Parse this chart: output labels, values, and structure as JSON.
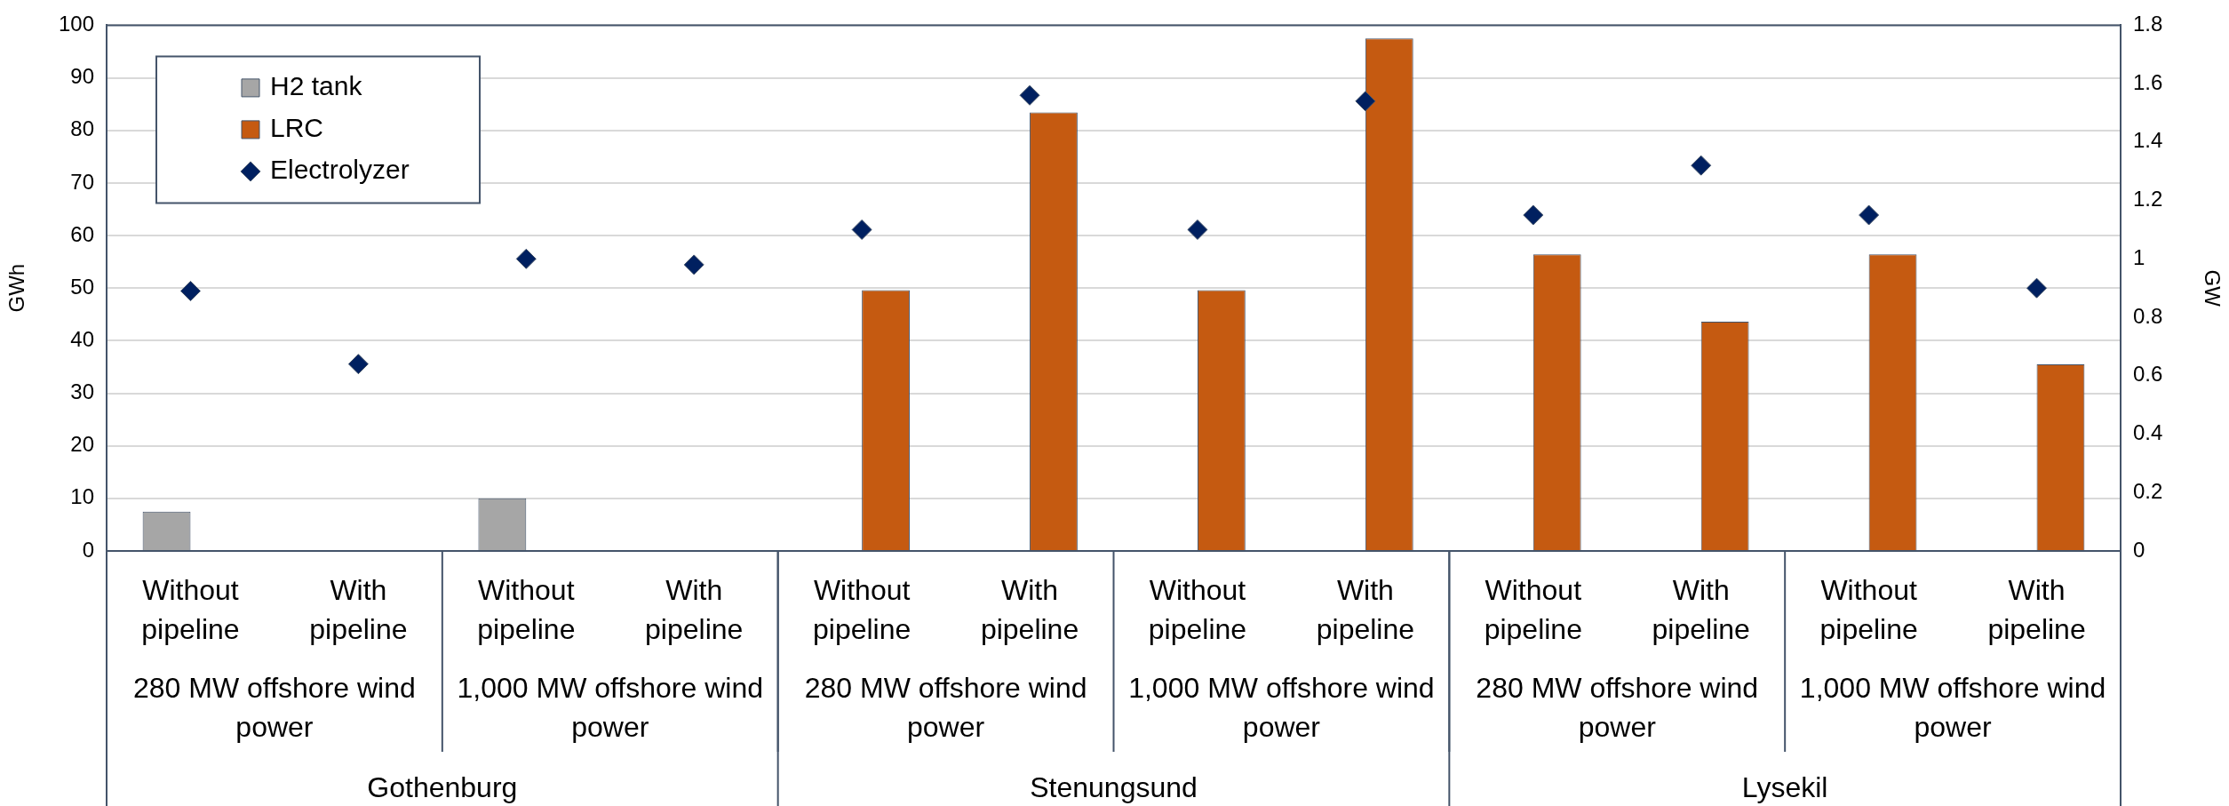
{
  "chart_data": {
    "type": "bar",
    "ylabel": "GWh",
    "y2label": "GW",
    "categories": [
      "Without pipeline",
      "With pipeline",
      "Without pipeline",
      "With pipeline",
      "Without pipeline",
      "With pipeline",
      "Without pipeline",
      "With pipeline",
      "Without pipeline",
      "With pipeline",
      "Without pipeline",
      "With pipeline"
    ],
    "series": [
      {
        "name": "H2 tank",
        "color": "#a6a6a6",
        "values": [
          7.5,
          null,
          10,
          null,
          0,
          0,
          0,
          0,
          0,
          0,
          0,
          0
        ]
      },
      {
        "name": "LRC",
        "color": "#c55a11",
        "values": [
          0,
          0,
          0,
          0,
          49.6,
          83.4,
          49.6,
          97.5,
          56.4,
          43.6,
          56.4,
          35.5
        ]
      },
      {
        "name": "Electrolyzer",
        "type": "scatter",
        "axis": "y2",
        "marker": "diamond",
        "color": "#002060",
        "values": [
          0.89,
          0.64,
          1.0,
          0.98,
          1.1,
          1.56,
          1.1,
          1.54,
          1.15,
          1.32,
          1.15,
          0.9
        ]
      }
    ],
    "annotations": [
      "280 MW offshore wind power",
      "1,000 MW offshore wind power",
      "280 MW offshore wind power",
      "1,000 MW offshore wind power",
      "280 MW offshore wind power",
      "1,000 MW offshore wind power",
      "Gothenburg",
      "Stenungsund",
      "Lysekil"
    ],
    "ylim": [
      0,
      100
    ],
    "yticks": [
      0,
      10,
      20,
      30,
      40,
      50,
      60,
      70,
      80,
      90,
      100
    ],
    "y2lim": [
      0,
      1.8
    ],
    "y2ticks": [
      0,
      0.2,
      0.4,
      0.6,
      0.8,
      1,
      1.2,
      1.4,
      1.6,
      1.8
    ],
    "grid": "y",
    "legend": "top left"
  }
}
